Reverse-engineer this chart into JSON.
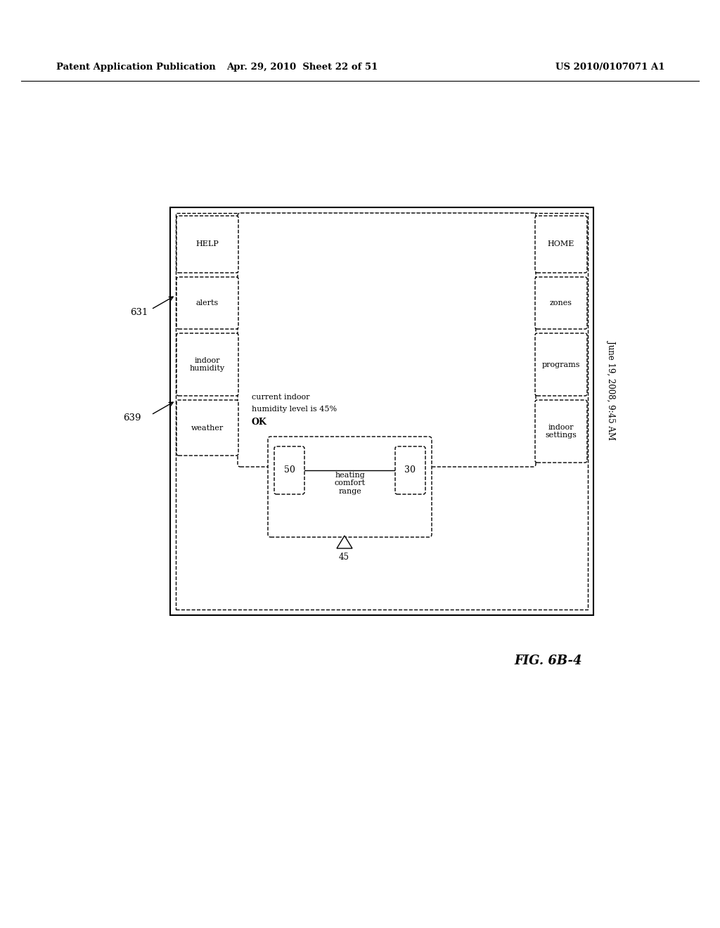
{
  "bg_color": "#ffffff",
  "header_left": "Patent Application Publication",
  "header_mid": "Apr. 29, 2010  Sheet 22 of 51",
  "header_right": "US 2010/0107071 A1",
  "fig_label": "FIG. 6B-4",
  "date_label": "June 19, 2008, 9:45 AM",
  "ref_631": "631",
  "ref_639": "639",
  "content_text1": "current indoor",
  "content_text2": "humidity level is 45%",
  "content_text3": "OK"
}
